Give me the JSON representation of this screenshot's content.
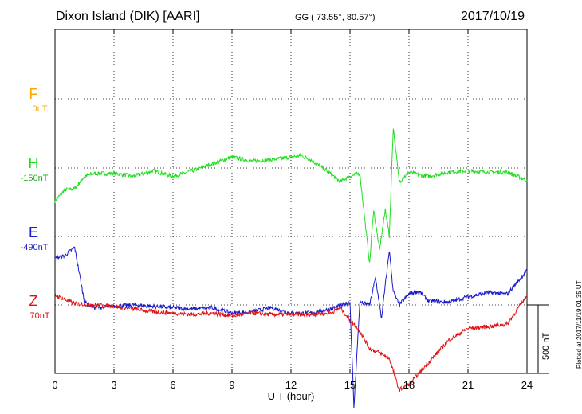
{
  "header": {
    "title": "Dixon Island (DIK)  [AARI]",
    "coords": "GG ( 73.55°,  80.57°)",
    "date": "2017/10/19"
  },
  "footer": {
    "plotted": "Plotted at 2017/11/19 01:35 UT",
    "scale_label": "500 nT"
  },
  "channels": [
    {
      "name": "F",
      "baseline": "0nT",
      "color": "#ffa500"
    },
    {
      "name": "H",
      "baseline": "-150nT",
      "color": "#22dd22"
    },
    {
      "name": "E",
      "baseline": "-490nT",
      "color": "#1a1acc"
    },
    {
      "name": "Z",
      "baseline": "70nT",
      "color": "#e01010"
    }
  ],
  "chart_data": {
    "type": "line",
    "xlabel": "U T (hour)",
    "xlim": [
      0,
      24
    ],
    "xticks": [
      0,
      3,
      6,
      9,
      12,
      15,
      18,
      21,
      24
    ],
    "scale_bar_nT": 500,
    "grid": true,
    "series": [
      {
        "name": "H",
        "x": [
          0,
          0.5,
          1,
          1.5,
          2,
          3,
          4,
          5,
          6,
          7,
          8,
          9,
          10,
          11,
          12,
          12.5,
          13,
          14,
          14.5,
          15,
          15.5,
          16,
          16.2,
          16.5,
          16.8,
          17,
          17.2,
          17.5,
          18,
          18.5,
          19,
          20,
          21,
          22,
          23,
          24
        ],
        "y": [
          -240,
          -160,
          -150,
          -60,
          -40,
          -40,
          -60,
          -20,
          -60,
          -20,
          30,
          80,
          50,
          60,
          80,
          90,
          60,
          -40,
          -100,
          -60,
          -40,
          -700,
          -300,
          -600,
          -300,
          -500,
          300,
          -100,
          -30,
          -50,
          -60,
          -30,
          -20,
          -30,
          -30,
          -90
        ]
      },
      {
        "name": "E",
        "x": [
          0,
          0.5,
          1,
          1.5,
          2,
          3,
          4,
          5,
          6,
          7,
          8,
          9,
          10,
          11,
          12,
          13,
          14,
          15,
          15.2,
          15.5,
          16,
          16.3,
          16.6,
          17,
          17.2,
          17.5,
          18,
          18.5,
          19,
          20,
          21,
          22,
          23,
          24
        ],
        "y": [
          -160,
          -140,
          -80,
          -480,
          -520,
          -510,
          -500,
          -510,
          -520,
          -530,
          -520,
          -560,
          -550,
          -520,
          -560,
          -560,
          -530,
          -480,
          -1250,
          -480,
          -500,
          -300,
          -600,
          -100,
          -400,
          -500,
          -420,
          -400,
          -470,
          -480,
          -440,
          -410,
          -420,
          -250
        ]
      },
      {
        "name": "Z",
        "x": [
          0,
          1,
          2,
          3,
          4,
          5,
          6,
          7,
          8,
          9,
          10,
          11,
          12,
          13,
          14,
          14.5,
          15,
          15.5,
          16,
          16.5,
          17,
          17.5,
          18,
          19,
          20,
          21,
          22,
          23,
          24
        ],
        "y": [
          70,
          10,
          0,
          -10,
          -30,
          -50,
          -60,
          -70,
          -60,
          -80,
          -60,
          -70,
          -70,
          -70,
          -60,
          -20,
          -110,
          -190,
          -320,
          -350,
          -390,
          -620,
          -580,
          -420,
          -260,
          -170,
          -160,
          -140,
          70
        ]
      }
    ]
  }
}
